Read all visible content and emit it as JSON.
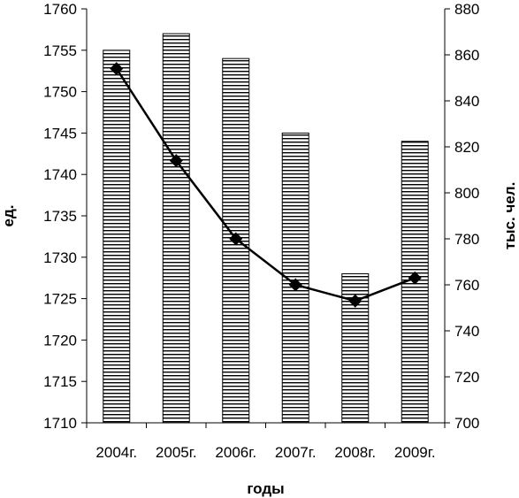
{
  "chart_data": {
    "type": "bar",
    "categories": [
      "2004г.",
      "2005г.",
      "2006г.",
      "2007г.",
      "2008г.",
      "2009г."
    ],
    "series": [
      {
        "type": "bar",
        "axis": "left",
        "values": [
          1755,
          1757,
          1754,
          1745,
          1728,
          1744
        ]
      },
      {
        "type": "line",
        "axis": "right",
        "values": [
          854,
          814,
          780,
          760,
          753,
          763
        ]
      }
    ],
    "xlabel": "годы",
    "ylabel_left": "ед.",
    "ylabel_right": "тыс. чел.",
    "ylim_left": [
      1710,
      1760
    ],
    "ylim_right": [
      700,
      880
    ],
    "yticks_left": [
      "1710",
      "1715",
      "1720",
      "1725",
      "1730",
      "1735",
      "1740",
      "1745",
      "1750",
      "1755",
      "1760"
    ],
    "yticks_right": [
      "700",
      "720",
      "740",
      "760",
      "780",
      "800",
      "820",
      "840",
      "860",
      "880"
    ],
    "grid": false,
    "legend": "none",
    "colors": {
      "bar_fill": "#ffffff",
      "bar_hatch": "#000000",
      "line": "#000000",
      "marker": "#000000"
    }
  }
}
